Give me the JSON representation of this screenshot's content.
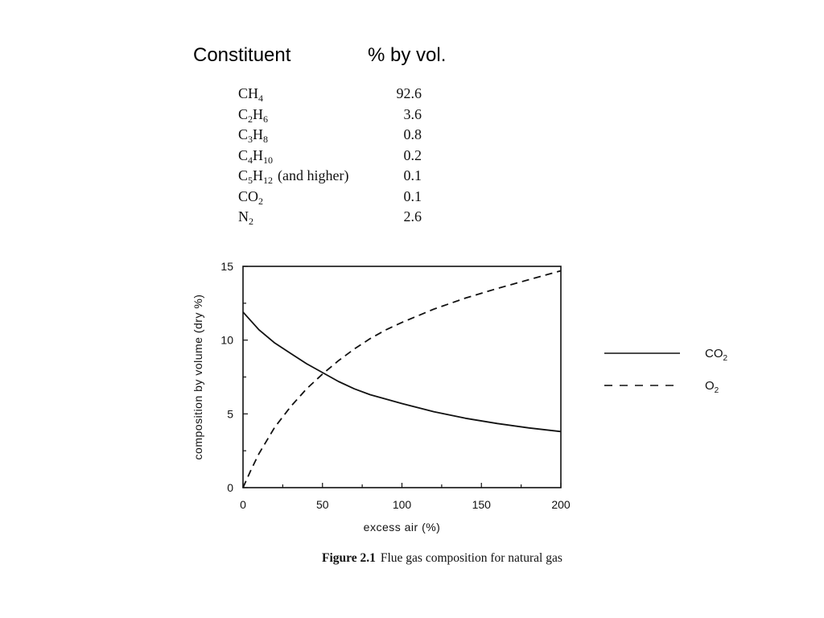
{
  "header": {
    "constituent": "Constituent",
    "by_vol": "% by vol."
  },
  "composition_table": [
    {
      "formula": [
        [
          "C",
          ""
        ],
        [
          "H",
          "4"
        ]
      ],
      "note": "",
      "value": "92.6"
    },
    {
      "formula": [
        [
          "C",
          "2"
        ],
        [
          "H",
          "6"
        ]
      ],
      "note": "",
      "value": "3.6"
    },
    {
      "formula": [
        [
          "C",
          "3"
        ],
        [
          "H",
          "8"
        ]
      ],
      "note": "",
      "value": "0.8"
    },
    {
      "formula": [
        [
          "C",
          "4"
        ],
        [
          "H",
          "10"
        ]
      ],
      "note": "",
      "value": "0.2"
    },
    {
      "formula": [
        [
          "C",
          "5"
        ],
        [
          "H",
          "12"
        ]
      ],
      "note": "(and higher)",
      "value": "0.1"
    },
    {
      "formula": [
        [
          "CO",
          "2"
        ]
      ],
      "note": "",
      "value": "0.1"
    },
    {
      "formula": [
        [
          "N",
          "2"
        ]
      ],
      "note": "",
      "value": "2.6"
    }
  ],
  "chart_data": {
    "type": "line",
    "xlabel": "excess air (%)",
    "ylabel": "composition by volume (dry %)",
    "xlim": [
      0,
      200
    ],
    "ylim": [
      0,
      15
    ],
    "xticks": [
      0,
      50,
      100,
      150,
      200
    ],
    "yticks": [
      0,
      5,
      10,
      15
    ],
    "grid": false,
    "legend_position": "right",
    "series": [
      {
        "name": "CO2",
        "label_main": "CO",
        "label_sub": "2",
        "style": "solid",
        "x": [
          0,
          10,
          20,
          30,
          40,
          50,
          60,
          70,
          80,
          90,
          100,
          120,
          140,
          160,
          180,
          200
        ],
        "y": [
          11.9,
          10.7,
          9.8,
          9.1,
          8.4,
          7.8,
          7.2,
          6.7,
          6.3,
          6.0,
          5.7,
          5.15,
          4.7,
          4.35,
          4.05,
          3.8
        ]
      },
      {
        "name": "O2",
        "label_main": "O",
        "label_sub": "2",
        "style": "dashed",
        "x": [
          0,
          5,
          10,
          20,
          30,
          40,
          50,
          60,
          70,
          80,
          90,
          100,
          120,
          140,
          160,
          180,
          200
        ],
        "y": [
          0,
          1.2,
          2.3,
          4.1,
          5.5,
          6.7,
          7.7,
          8.6,
          9.4,
          10.1,
          10.7,
          11.2,
          12.1,
          12.85,
          13.5,
          14.1,
          14.7
        ]
      }
    ]
  },
  "caption": {
    "figure": "Figure 2.1",
    "text": "Flue gas composition for natural gas"
  }
}
